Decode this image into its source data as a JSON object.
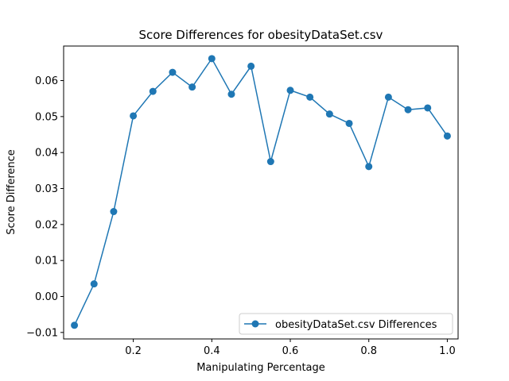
{
  "chart_data": {
    "type": "line",
    "title": "Score Differences for obesityDataSet.csv",
    "xlabel": "Manipulating Percentage",
    "ylabel": "Score Difference",
    "xlim": [
      0.0225,
      1.0275
    ],
    "ylim": [
      -0.0118,
      0.0696
    ],
    "xticks": [
      0.2,
      0.4,
      0.6,
      0.8,
      1.0
    ],
    "xtick_labels": [
      "0.2",
      "0.4",
      "0.6",
      "0.8",
      "1.0"
    ],
    "yticks": [
      -0.01,
      0.0,
      0.01,
      0.02,
      0.03,
      0.04,
      0.05,
      0.06
    ],
    "ytick_labels": [
      "−0.01",
      "0.00",
      "0.01",
      "0.02",
      "0.03",
      "0.04",
      "0.05",
      "0.06"
    ],
    "grid": false,
    "legend_position": "lower-right",
    "color": "#1f77b4",
    "marker": "circle",
    "series": [
      {
        "name": "obesityDataSet.csv Differences",
        "x": [
          0.05,
          0.1,
          0.15,
          0.2,
          0.25,
          0.3,
          0.35,
          0.4,
          0.45,
          0.5,
          0.55,
          0.6,
          0.65,
          0.7,
          0.75,
          0.8,
          0.85,
          0.9,
          0.95,
          1.0
        ],
        "y": [
          -0.008,
          0.0035,
          0.0236,
          0.0502,
          0.057,
          0.0623,
          0.0582,
          0.0661,
          0.0562,
          0.064,
          0.0375,
          0.0573,
          0.0554,
          0.0507,
          0.0481,
          0.0361,
          0.0554,
          0.0519,
          0.0524,
          0.0446
        ]
      }
    ]
  }
}
